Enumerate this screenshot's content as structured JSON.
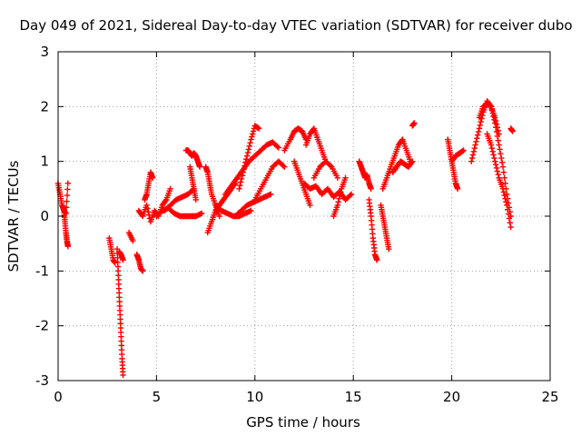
{
  "chart_data": {
    "type": "scatter",
    "title": "Day 049 of 2021, Sidereal Day-to-day VTEC variation (SDTVAR) for receiver dubo",
    "xlabel": "GPS time / hours",
    "ylabel": "SDTVAR / TECUs",
    "xlim": [
      0,
      25
    ],
    "ylim": [
      -3,
      3
    ],
    "x_ticks": [
      "0",
      "5",
      "10",
      "15",
      "20",
      "25"
    ],
    "y_ticks": [
      "-3",
      "-2",
      "-1",
      "0",
      "1",
      "2",
      "3"
    ],
    "grid": true,
    "marker": "+",
    "series_color": "#ff0000",
    "segments": [
      {
        "x": [
          0.0,
          0.1,
          0.2,
          0.3,
          0.4,
          0.5
        ],
        "y": [
          0.6,
          0.4,
          0.2,
          0.1,
          0.05,
          0.6
        ]
      },
      {
        "x": [
          0.3,
          0.35,
          0.4,
          0.45,
          0.5
        ],
        "y": [
          0.1,
          -0.1,
          -0.3,
          -0.45,
          -0.55
        ]
      },
      {
        "x": [
          2.6,
          2.7,
          2.8,
          2.9
        ],
        "y": [
          -0.4,
          -0.6,
          -0.8,
          -0.85
        ]
      },
      {
        "x": [
          3.0,
          3.05,
          3.1,
          3.15,
          3.2,
          3.25,
          3.3
        ],
        "y": [
          -0.6,
          -1.0,
          -1.4,
          -1.8,
          -2.2,
          -2.6,
          -2.9
        ]
      },
      {
        "x": [
          3.1,
          3.2,
          3.3
        ],
        "y": [
          -0.65,
          -0.7,
          -0.8
        ]
      },
      {
        "x": [
          3.6,
          3.8
        ],
        "y": [
          -0.3,
          -0.45
        ]
      },
      {
        "x": [
          4.0,
          4.1,
          4.2,
          4.3
        ],
        "y": [
          -0.7,
          -0.8,
          -0.95,
          -1.0
        ]
      },
      {
        "x": [
          4.1,
          4.3,
          4.5,
          4.7,
          4.9,
          5.1,
          5.3,
          5.5,
          5.7
        ],
        "y": [
          0.1,
          0.0,
          0.2,
          -0.1,
          0.1,
          0.0,
          0.2,
          0.3,
          0.5
        ]
      },
      {
        "x": [
          4.4,
          4.5,
          4.6,
          4.7,
          4.8
        ],
        "y": [
          0.3,
          0.4,
          0.6,
          0.8,
          0.7
        ]
      },
      {
        "x": [
          5.0,
          5.3,
          5.6,
          5.9,
          6.2,
          6.5,
          6.8,
          7.0,
          7.3
        ],
        "y": [
          0.0,
          0.1,
          0.15,
          0.05,
          0.0,
          0.0,
          0.0,
          0.0,
          0.05
        ]
      },
      {
        "x": [
          5.4,
          5.7,
          6.0,
          6.3,
          6.6,
          6.9
        ],
        "y": [
          0.1,
          0.2,
          0.3,
          0.35,
          0.4,
          0.5
        ]
      },
      {
        "x": [
          6.5,
          6.6,
          6.7,
          6.8,
          6.9,
          7.0,
          7.1,
          7.2
        ],
        "y": [
          1.2,
          1.2,
          1.15,
          1.1,
          1.15,
          1.1,
          1.0,
          0.9
        ]
      },
      {
        "x": [
          6.7,
          6.8,
          6.9,
          7.0
        ],
        "y": [
          0.9,
          0.7,
          0.5,
          0.3
        ]
      },
      {
        "x": [
          7.5,
          7.6,
          7.7,
          7.8,
          8.0,
          8.2
        ],
        "y": [
          0.9,
          0.8,
          0.6,
          0.4,
          0.2,
          0.0
        ]
      },
      {
        "x": [
          7.6,
          7.8,
          8.0,
          8.2,
          8.4,
          8.6,
          8.8,
          9.0
        ],
        "y": [
          -0.3,
          -0.1,
          0.1,
          0.2,
          0.3,
          0.4,
          0.5,
          0.6
        ]
      },
      {
        "x": [
          8.0,
          8.3,
          8.6,
          8.9,
          9.2,
          9.5,
          9.8
        ],
        "y": [
          0.2,
          0.1,
          0.05,
          0.0,
          0.0,
          0.05,
          0.1
        ]
      },
      {
        "x": [
          8.5,
          8.8,
          9.1,
          9.4,
          9.7,
          10.0,
          10.3,
          10.6,
          10.9,
          11.2
        ],
        "y": [
          0.4,
          0.55,
          0.7,
          0.85,
          1.0,
          1.1,
          1.2,
          1.3,
          1.35,
          1.25
        ]
      },
      {
        "x": [
          9.2,
          9.4,
          9.6,
          9.8,
          10.0,
          10.2
        ],
        "y": [
          0.5,
          0.8,
          1.1,
          1.4,
          1.65,
          1.6
        ]
      },
      {
        "x": [
          9.0,
          9.3,
          9.6,
          9.9,
          10.2,
          10.5,
          10.8
        ],
        "y": [
          0.0,
          0.1,
          0.2,
          0.25,
          0.3,
          0.35,
          0.4
        ]
      },
      {
        "x": [
          10.0,
          10.3,
          10.6,
          10.9,
          11.2,
          11.5
        ],
        "y": [
          0.3,
          0.5,
          0.7,
          0.9,
          1.0,
          0.9
        ]
      },
      {
        "x": [
          11.5,
          11.8,
          12.0,
          12.2,
          12.4,
          12.6
        ],
        "y": [
          1.2,
          1.4,
          1.55,
          1.6,
          1.55,
          1.4
        ]
      },
      {
        "x": [
          12.0,
          12.2,
          12.4,
          12.6,
          12.8
        ],
        "y": [
          1.0,
          0.8,
          0.6,
          0.4,
          0.2
        ]
      },
      {
        "x": [
          12.6,
          12.8,
          13.0,
          13.2,
          13.4,
          13.6
        ],
        "y": [
          1.3,
          1.5,
          1.6,
          1.4,
          1.2,
          1.0
        ]
      },
      {
        "x": [
          12.5,
          12.8,
          13.1,
          13.4,
          13.7,
          14.0,
          14.3,
          14.6,
          14.9
        ],
        "y": [
          0.6,
          0.5,
          0.55,
          0.4,
          0.5,
          0.35,
          0.45,
          0.3,
          0.4
        ]
      },
      {
        "x": [
          13.0,
          13.3,
          13.6,
          13.9,
          14.2
        ],
        "y": [
          0.7,
          0.9,
          1.0,
          0.9,
          0.7
        ]
      },
      {
        "x": [
          14.0,
          14.2,
          14.4,
          14.6
        ],
        "y": [
          0.0,
          0.2,
          0.5,
          0.7
        ]
      },
      {
        "x": [
          15.3,
          15.4,
          15.5,
          15.6,
          15.7,
          15.8,
          15.9
        ],
        "y": [
          1.0,
          0.9,
          0.8,
          0.7,
          0.75,
          0.6,
          0.5
        ]
      },
      {
        "x": [
          15.8,
          15.9,
          16.0,
          16.1,
          16.2
        ],
        "y": [
          0.3,
          0.0,
          -0.4,
          -0.7,
          -0.8
        ]
      },
      {
        "x": [
          16.4,
          16.5,
          16.6,
          16.7,
          16.8
        ],
        "y": [
          0.2,
          0.0,
          -0.2,
          -0.4,
          -0.6
        ]
      },
      {
        "x": [
          16.5,
          16.7,
          16.9,
          17.1,
          17.3,
          17.5,
          17.7,
          17.9
        ],
        "y": [
          0.5,
          0.7,
          0.9,
          1.1,
          1.3,
          1.4,
          1.2,
          1.0
        ]
      },
      {
        "x": [
          17.0,
          17.2,
          17.4,
          17.6,
          17.8,
          18.0
        ],
        "y": [
          0.8,
          0.9,
          1.0,
          0.95,
          0.9,
          1.0
        ]
      },
      {
        "x": [
          18.0,
          18.1
        ],
        "y": [
          1.65,
          1.7
        ]
      },
      {
        "x": [
          19.8,
          19.9,
          20.0,
          20.1,
          20.2,
          20.3
        ],
        "y": [
          1.4,
          1.2,
          1.0,
          0.8,
          0.6,
          0.5
        ]
      },
      {
        "x": [
          20.0,
          20.2,
          20.4,
          20.6
        ],
        "y": [
          1.0,
          1.1,
          1.15,
          1.2
        ]
      },
      {
        "x": [
          21.0,
          21.2,
          21.4,
          21.6,
          21.8,
          22.0,
          22.2,
          22.4
        ],
        "y": [
          1.0,
          1.3,
          1.6,
          1.9,
          2.1,
          2.0,
          1.8,
          1.5
        ]
      },
      {
        "x": [
          21.4,
          21.6,
          21.8,
          22.0,
          22.2,
          22.4,
          22.6,
          22.8,
          23.0
        ],
        "y": [
          1.8,
          2.0,
          2.05,
          2.0,
          1.7,
          1.3,
          0.9,
          0.4,
          0.0
        ]
      },
      {
        "x": [
          21.8,
          22.0,
          22.2,
          22.4,
          22.6,
          22.8,
          23.0
        ],
        "y": [
          1.5,
          1.3,
          1.0,
          0.7,
          0.5,
          0.2,
          -0.2
        ]
      },
      {
        "x": [
          23.0,
          23.1
        ],
        "y": [
          1.6,
          1.55
        ]
      }
    ]
  }
}
